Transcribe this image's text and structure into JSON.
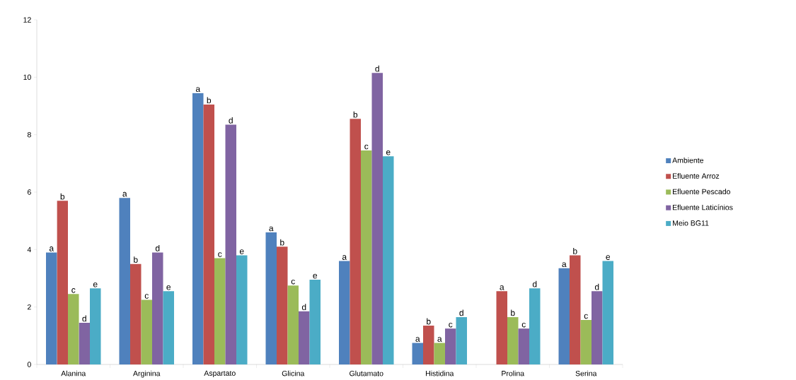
{
  "chart_data": {
    "type": "bar",
    "categories": [
      "Alanina",
      "Arginina",
      "Aspartato",
      "Glicina",
      "Glutamato",
      "Histidina",
      "Prolina",
      "Serina"
    ],
    "series": [
      {
        "name": "Ambiente",
        "color": "#4f81bd",
        "values": [
          3.9,
          5.8,
          9.45,
          4.6,
          3.6,
          0.75,
          null,
          3.35
        ],
        "value_labels": [
          "a",
          "a",
          "a",
          "a",
          "a",
          "a",
          null,
          "a"
        ]
      },
      {
        "name": "Efluente Arroz",
        "color": "#c0504d",
        "values": [
          5.7,
          3.5,
          9.05,
          4.1,
          8.55,
          1.35,
          2.55,
          3.8
        ],
        "value_labels": [
          "b",
          "b",
          "b",
          "b",
          "b",
          "b",
          "a",
          "b"
        ]
      },
      {
        "name": "Efluente Pescado",
        "color": "#9bbb59",
        "values": [
          2.45,
          2.25,
          3.7,
          2.75,
          7.45,
          0.75,
          1.65,
          1.55
        ],
        "value_labels": [
          "c",
          "c",
          "c",
          "c",
          "c",
          "a",
          "b",
          "c"
        ]
      },
      {
        "name": "Efluente Laticínios",
        "color": "#8064a2",
        "values": [
          1.45,
          3.9,
          8.35,
          1.85,
          10.15,
          1.25,
          1.25,
          2.55
        ],
        "value_labels": [
          "d",
          "d",
          "d",
          "d",
          "d",
          "c",
          "c",
          "d"
        ]
      },
      {
        "name": "Meio BG11",
        "color": "#4bacc6",
        "values": [
          2.65,
          2.55,
          3.8,
          2.95,
          7.25,
          1.65,
          2.65,
          3.6
        ],
        "value_labels": [
          "e",
          "e",
          "e",
          "e",
          "e",
          "d",
          "d",
          "e"
        ]
      }
    ],
    "ylim": [
      0,
      12
    ],
    "yticks": [
      0,
      2,
      4,
      6,
      8,
      10,
      12
    ],
    "grid": false,
    "legend": "right"
  }
}
